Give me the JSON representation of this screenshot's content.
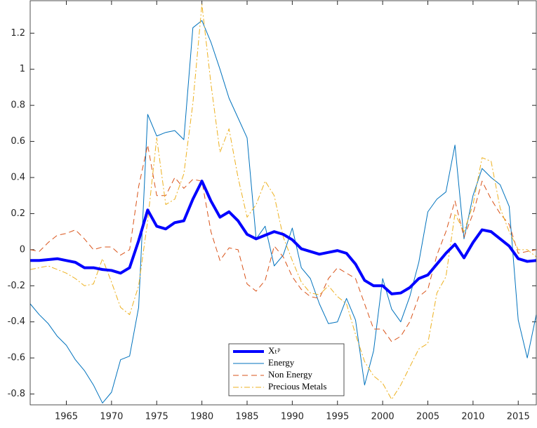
{
  "chart_data": {
    "type": "line",
    "x": [
      1961,
      1962,
      1963,
      1964,
      1965,
      1966,
      1967,
      1968,
      1969,
      1970,
      1971,
      1972,
      1973,
      1974,
      1975,
      1976,
      1977,
      1978,
      1979,
      1980,
      1981,
      1982,
      1983,
      1984,
      1985,
      1986,
      1987,
      1988,
      1989,
      1990,
      1991,
      1992,
      1993,
      1994,
      1995,
      1996,
      1997,
      1998,
      1999,
      2000,
      2001,
      2002,
      2003,
      2004,
      2005,
      2006,
      2007,
      2008,
      2009,
      2010,
      2011,
      2012,
      2013,
      2014,
      2015,
      2016,
      2017
    ],
    "series": [
      {
        "name": "Xₜᵖ",
        "color": "#0000ff",
        "linestyle": "solid",
        "linewidth": 4,
        "values": [
          -0.06,
          -0.06,
          -0.055,
          -0.05,
          -0.06,
          -0.07,
          -0.1,
          -0.1,
          -0.11,
          -0.115,
          -0.13,
          -0.1,
          0.05,
          0.22,
          0.13,
          0.115,
          0.15,
          0.16,
          0.28,
          0.38,
          0.27,
          0.18,
          0.21,
          0.16,
          0.085,
          0.06,
          0.08,
          0.1,
          0.085,
          0.055,
          0.005,
          -0.01,
          -0.025,
          -0.015,
          -0.005,
          -0.02,
          -0.08,
          -0.17,
          -0.2,
          -0.2,
          -0.245,
          -0.24,
          -0.21,
          -0.16,
          -0.14,
          -0.08,
          -0.02,
          0.03,
          -0.045,
          0.04,
          0.11,
          0.1,
          0.06,
          0.02,
          -0.05,
          -0.065,
          -0.06
        ]
      },
      {
        "name": "Energy",
        "color": "#0072bd",
        "linestyle": "solid",
        "linewidth": 1,
        "values": [
          -0.3,
          -0.36,
          -0.41,
          -0.48,
          -0.53,
          -0.61,
          -0.67,
          -0.75,
          -0.85,
          -0.79,
          -0.61,
          -0.59,
          -0.32,
          0.75,
          0.63,
          0.65,
          0.66,
          0.61,
          1.23,
          1.27,
          1.15,
          1.0,
          0.84,
          0.73,
          0.62,
          0.06,
          0.13,
          -0.09,
          -0.03,
          0.12,
          -0.1,
          -0.16,
          -0.3,
          -0.41,
          -0.4,
          -0.27,
          -0.39,
          -0.75,
          -0.56,
          -0.16,
          -0.33,
          -0.4,
          -0.26,
          -0.07,
          0.21,
          0.28,
          0.32,
          0.58,
          0.06,
          0.3,
          0.45,
          0.4,
          0.36,
          0.24,
          -0.39,
          -0.6,
          -0.36
        ]
      },
      {
        "name": "Non Energy",
        "color": "#d95319",
        "linestyle": "dashed",
        "linewidth": 1,
        "values": [
          0,
          -0.01,
          0.04,
          0.08,
          0.09,
          0.11,
          0.06,
          0.0,
          0.015,
          0.015,
          -0.03,
          0.0,
          0.35,
          0.58,
          0.3,
          0.3,
          0.4,
          0.34,
          0.39,
          0.38,
          0.1,
          -0.06,
          0.01,
          0.0,
          -0.19,
          -0.23,
          -0.17,
          0.02,
          -0.04,
          -0.15,
          -0.22,
          -0.26,
          -0.27,
          -0.16,
          -0.1,
          -0.13,
          -0.16,
          -0.3,
          -0.44,
          -0.44,
          -0.51,
          -0.48,
          -0.4,
          -0.26,
          -0.22,
          -0.03,
          0.1,
          0.27,
          0.07,
          0.2,
          0.38,
          0.28,
          0.2,
          0.14,
          -0.02,
          -0.01,
          0.0
        ]
      },
      {
        "name": "Precious Metals",
        "color": "#edb120",
        "linestyle": "dashdot",
        "linewidth": 1,
        "values": [
          -0.11,
          -0.1,
          -0.09,
          -0.11,
          -0.13,
          -0.16,
          -0.2,
          -0.19,
          -0.05,
          -0.18,
          -0.32,
          -0.36,
          -0.2,
          0.16,
          0.62,
          0.25,
          0.28,
          0.42,
          0.81,
          1.36,
          0.92,
          0.54,
          0.67,
          0.4,
          0.18,
          0.25,
          0.38,
          0.3,
          0.07,
          -0.06,
          -0.18,
          -0.24,
          -0.25,
          -0.2,
          -0.26,
          -0.3,
          -0.47,
          -0.62,
          -0.7,
          -0.74,
          -0.83,
          -0.75,
          -0.65,
          -0.55,
          -0.52,
          -0.24,
          -0.15,
          0.2,
          0.1,
          0.25,
          0.51,
          0.49,
          0.23,
          0.1,
          0.0,
          0.0,
          -0.04
        ]
      }
    ],
    "xlim": [
      1961,
      2017
    ],
    "xticks": [
      1965,
      1970,
      1975,
      1980,
      1985,
      1990,
      1995,
      2000,
      2005,
      2010,
      2015
    ],
    "ylim": [
      -0.86,
      1.38
    ],
    "yticks": [
      -0.8,
      -0.6,
      -0.4,
      -0.2,
      0,
      0.2,
      0.4,
      0.6,
      0.8,
      1,
      1.2
    ],
    "grid": false
  }
}
